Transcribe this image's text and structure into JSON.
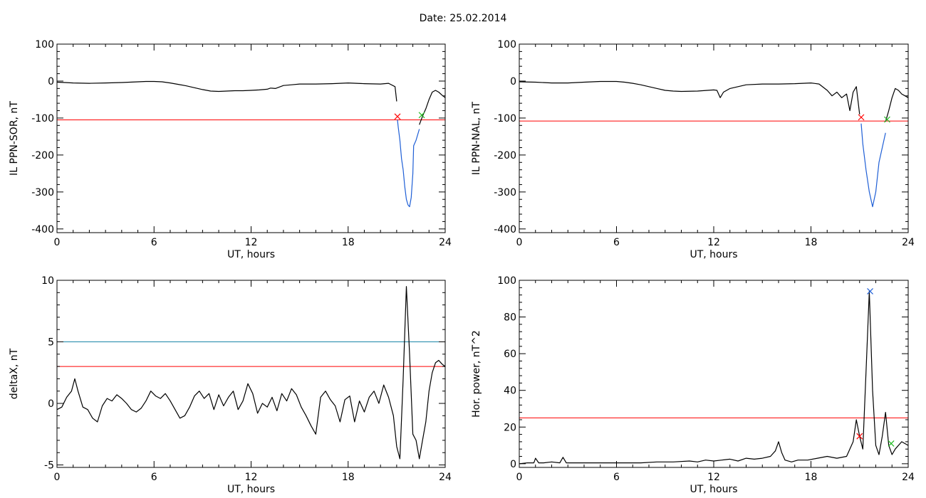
{
  "header": {
    "date_label": "Date:",
    "date_value": "25.02.2014"
  },
  "chart_data": [
    {
      "id": "il-ppn-sor",
      "type": "line",
      "xlabel": "UT, hours",
      "ylabel": "IL PPN-SOR, nT",
      "xlim": [
        0,
        24
      ],
      "ylim": [
        -410,
        100
      ],
      "xticks": [
        0,
        6,
        12,
        18,
        24
      ],
      "yticks": [
        -400,
        -300,
        -200,
        -100,
        0,
        100
      ],
      "thresholds": [
        {
          "y": -105,
          "color": "#ff0000"
        }
      ],
      "series": [
        {
          "color": "#000000",
          "x": [
            0,
            0.5,
            1,
            2,
            3,
            4,
            5,
            5.5,
            6,
            6.5,
            7,
            7.5,
            8,
            8.5,
            9,
            9.5,
            10,
            10.5,
            11,
            11.5,
            12,
            12.5,
            13,
            13.2,
            13.5,
            14,
            14.5,
            15,
            16,
            17,
            18,
            19,
            20,
            20.5,
            20.9,
            21.0
          ],
          "y": [
            -3,
            -4,
            -5,
            -6,
            -5,
            -4,
            -2,
            -1,
            -1,
            -2,
            -5,
            -9,
            -13,
            -18,
            -23,
            -27,
            -28,
            -27,
            -26,
            -26,
            -25,
            -24,
            -22,
            -19,
            -20,
            -12,
            -10,
            -8,
            -8,
            -7,
            -5,
            -7,
            -8,
            -6,
            -15,
            -55
          ]
        },
        {
          "color": "#1f5fd6",
          "x": [
            21.05,
            21.1,
            21.2,
            21.3,
            21.4,
            21.5,
            21.6,
            21.7,
            21.8,
            21.9,
            22.0,
            22.05,
            22.2,
            22.4
          ],
          "y": [
            -105,
            -125,
            -160,
            -210,
            -240,
            -285,
            -320,
            -335,
            -340,
            -315,
            -250,
            -175,
            -160,
            -130
          ]
        },
        {
          "color": "#000000",
          "x": [
            22.4,
            22.6,
            22.8,
            23.0,
            23.2,
            23.4,
            23.6,
            23.8,
            24.0
          ],
          "y": [
            -118,
            -95,
            -75,
            -50,
            -30,
            -25,
            -30,
            -38,
            -45
          ]
        }
      ],
      "markers": [
        {
          "x": 21.05,
          "y": -96,
          "color": "#ff0000",
          "symbol": "x"
        },
        {
          "x": 22.55,
          "y": -92,
          "color": "#22bb22",
          "symbol": "x"
        }
      ]
    },
    {
      "id": "il-ppn-nal",
      "type": "line",
      "xlabel": "UT, hours",
      "ylabel": "IL PPN-NAL, nT",
      "xlim": [
        0,
        24
      ],
      "ylim": [
        -410,
        100
      ],
      "xticks": [
        0,
        6,
        12,
        18,
        24
      ],
      "yticks": [
        -400,
        -300,
        -200,
        -100,
        0,
        100
      ],
      "thresholds": [
        {
          "y": -108,
          "color": "#ff0000"
        }
      ],
      "series": [
        {
          "color": "#000000",
          "x": [
            0,
            1,
            2,
            3,
            4,
            5,
            6,
            6.5,
            7,
            7.5,
            8,
            8.5,
            9,
            9.5,
            10,
            11,
            12,
            12.2,
            12.4,
            12.6,
            13,
            13.5,
            14,
            15,
            16,
            17,
            18,
            18.5,
            19,
            19.3,
            19.6,
            19.9,
            20.2,
            20.4,
            20.6,
            20.8,
            21.0
          ],
          "y": [
            -2,
            -3,
            -5,
            -5,
            -3,
            -1,
            -1,
            -3,
            -6,
            -10,
            -15,
            -20,
            -25,
            -27,
            -28,
            -27,
            -24,
            -25,
            -45,
            -30,
            -20,
            -15,
            -10,
            -8,
            -8,
            -7,
            -5,
            -8,
            -25,
            -40,
            -30,
            -45,
            -35,
            -80,
            -30,
            -15,
            -90
          ]
        },
        {
          "color": "#1f5fd6",
          "x": [
            21.1,
            21.2,
            21.4,
            21.6,
            21.8,
            22.0,
            22.2,
            22.4,
            22.6
          ],
          "y": [
            -115,
            -170,
            -240,
            -300,
            -340,
            -300,
            -220,
            -180,
            -140
          ]
        },
        {
          "color": "#000000",
          "x": [
            22.6,
            22.8,
            23.0,
            23.2,
            23.4,
            23.6,
            23.8,
            24.0
          ],
          "y": [
            -110,
            -80,
            -45,
            -20,
            -25,
            -35,
            -40,
            -45
          ]
        }
      ],
      "markers": [
        {
          "x": 21.1,
          "y": -98,
          "color": "#ff0000",
          "symbol": "x"
        },
        {
          "x": 22.7,
          "y": -104,
          "color": "#22bb22",
          "symbol": "x"
        }
      ]
    },
    {
      "id": "deltax",
      "type": "line",
      "xlabel": "UT, hours",
      "ylabel": "deltaX, nT",
      "xlim": [
        0,
        24
      ],
      "ylim": [
        -5.2,
        10
      ],
      "xticks": [
        0,
        6,
        12,
        18,
        24
      ],
      "yticks": [
        -5,
        0,
        5,
        10
      ],
      "thresholds": [
        {
          "y": 5,
          "color": "#1a86a8"
        },
        {
          "y": 3,
          "color": "#ff0000"
        }
      ],
      "series": [
        {
          "color": "#000000",
          "x": [
            0,
            0.3,
            0.6,
            0.9,
            1.1,
            1.3,
            1.6,
            1.9,
            2.2,
            2.5,
            2.8,
            3.1,
            3.4,
            3.7,
            4.0,
            4.3,
            4.6,
            4.9,
            5.2,
            5.5,
            5.8,
            6.1,
            6.4,
            6.7,
            7.0,
            7.3,
            7.6,
            7.9,
            8.2,
            8.5,
            8.8,
            9.1,
            9.4,
            9.7,
            10.0,
            10.3,
            10.6,
            10.9,
            11.2,
            11.5,
            11.8,
            12.1,
            12.4,
            12.7,
            13.0,
            13.3,
            13.6,
            13.9,
            14.2,
            14.5,
            14.8,
            15.1,
            15.4,
            15.7,
            16.0,
            16.3,
            16.6,
            16.9,
            17.2,
            17.5,
            17.8,
            18.1,
            18.4,
            18.7,
            19.0,
            19.3,
            19.6,
            19.9,
            20.2,
            20.5,
            20.8,
            21.0,
            21.2,
            21.4,
            21.6,
            21.8,
            22.0,
            22.2,
            22.4,
            22.6,
            22.8,
            23.0,
            23.2,
            23.4,
            23.6,
            23.8,
            24.0
          ],
          "y": [
            -0.5,
            -0.3,
            0.5,
            1.0,
            2.0,
            1.0,
            -0.3,
            -0.5,
            -1.2,
            -1.5,
            -0.2,
            0.4,
            0.2,
            0.7,
            0.4,
            0.0,
            -0.5,
            -0.7,
            -0.4,
            0.2,
            1.0,
            0.6,
            0.4,
            0.8,
            0.2,
            -0.5,
            -1.2,
            -1.0,
            -0.3,
            0.6,
            1.0,
            0.4,
            0.8,
            -0.5,
            0.7,
            -0.2,
            0.5,
            1.0,
            -0.5,
            0.2,
            1.6,
            0.8,
            -0.8,
            0.0,
            -0.3,
            0.5,
            -0.6,
            0.8,
            0.2,
            1.2,
            0.7,
            -0.3,
            -1.0,
            -1.8,
            -2.5,
            0.5,
            1.0,
            0.3,
            -0.2,
            -1.5,
            0.3,
            0.6,
            -1.5,
            0.2,
            -0.7,
            0.5,
            1.0,
            0.0,
            1.5,
            0.5,
            -1.0,
            -3.5,
            -4.5,
            2.0,
            9.5,
            4.0,
            -2.5,
            -3.0,
            -4.5,
            -3.0,
            -1.5,
            1.0,
            2.5,
            3.3,
            3.5,
            3.2,
            3.0
          ]
        }
      ],
      "markers": []
    },
    {
      "id": "hor-power",
      "type": "line",
      "xlabel": "UT, hours",
      "ylabel": "Hor. power, nT^2",
      "xlim": [
        0,
        24
      ],
      "ylim": [
        -2,
        100
      ],
      "xticks": [
        0,
        6,
        12,
        18,
        24
      ],
      "yticks": [
        0,
        20,
        40,
        60,
        80,
        100
      ],
      "thresholds": [
        {
          "y": 25,
          "color": "#ff0000"
        }
      ],
      "series": [
        {
          "color": "#000000",
          "x": [
            0,
            0.5,
            0.9,
            1.0,
            1.2,
            1.5,
            2.0,
            2.5,
            2.7,
            2.9,
            3.5,
            4.5,
            5.5,
            6.5,
            7.5,
            8.5,
            9.5,
            10.5,
            11.0,
            11.5,
            12.0,
            12.5,
            13.0,
            13.5,
            14.0,
            14.5,
            15.0,
            15.5,
            15.8,
            16.0,
            16.2,
            16.4,
            16.8,
            17.2,
            17.8,
            18.4,
            19.0,
            19.6,
            20.2,
            20.6,
            20.8,
            21.0,
            21.2,
            21.4,
            21.6,
            21.8,
            22.0,
            22.2,
            22.4,
            22.6,
            22.8,
            23.0,
            23.2,
            23.6,
            24.0
          ],
          "y": [
            0,
            0.5,
            0.5,
            3.0,
            0.5,
            0.5,
            1.0,
            0.5,
            3.5,
            0.5,
            0.5,
            0.5,
            0.5,
            0.5,
            0.5,
            1.0,
            1.0,
            1.5,
            1.0,
            2.0,
            1.5,
            2.0,
            2.5,
            1.5,
            3.0,
            2.5,
            3.0,
            4.0,
            7.0,
            12.0,
            6.0,
            2.0,
            1.0,
            2.0,
            2.0,
            3.0,
            4.0,
            3.0,
            4.0,
            12.0,
            24.0,
            15.0,
            8.0,
            50.0,
            94.0,
            40.0,
            10.0,
            5.0,
            15.0,
            28.0,
            10.0,
            5.0,
            8.0,
            12.0,
            10.0
          ]
        }
      ],
      "markers": [
        {
          "x": 21.0,
          "y": 15,
          "color": "#ff0000",
          "symbol": "x"
        },
        {
          "x": 21.65,
          "y": 94,
          "color": "#1f5fd6",
          "symbol": "x"
        },
        {
          "x": 22.95,
          "y": 11,
          "color": "#22bb22",
          "symbol": "x"
        }
      ]
    }
  ]
}
